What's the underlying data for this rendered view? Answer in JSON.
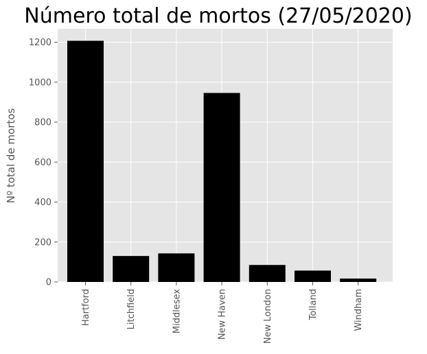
{
  "chart_data": {
    "type": "bar",
    "title": "Número total de mortos (27/05/2020)",
    "xlabel": "",
    "ylabel": "Nº total de mortos",
    "categories": [
      "Hartford",
      "Litchfield",
      "Middlesex",
      "New Haven",
      "New London",
      "Tolland",
      "Windham"
    ],
    "values": [
      1207,
      130,
      143,
      946,
      85,
      57,
      17
    ],
    "ylim": [
      0,
      1267
    ],
    "yticks": [
      0,
      200,
      400,
      600,
      800,
      1000,
      1200
    ],
    "grid": true,
    "bar_color": "#000000",
    "background_color": "#e5e5e5",
    "grid_color": "#ffffff"
  }
}
